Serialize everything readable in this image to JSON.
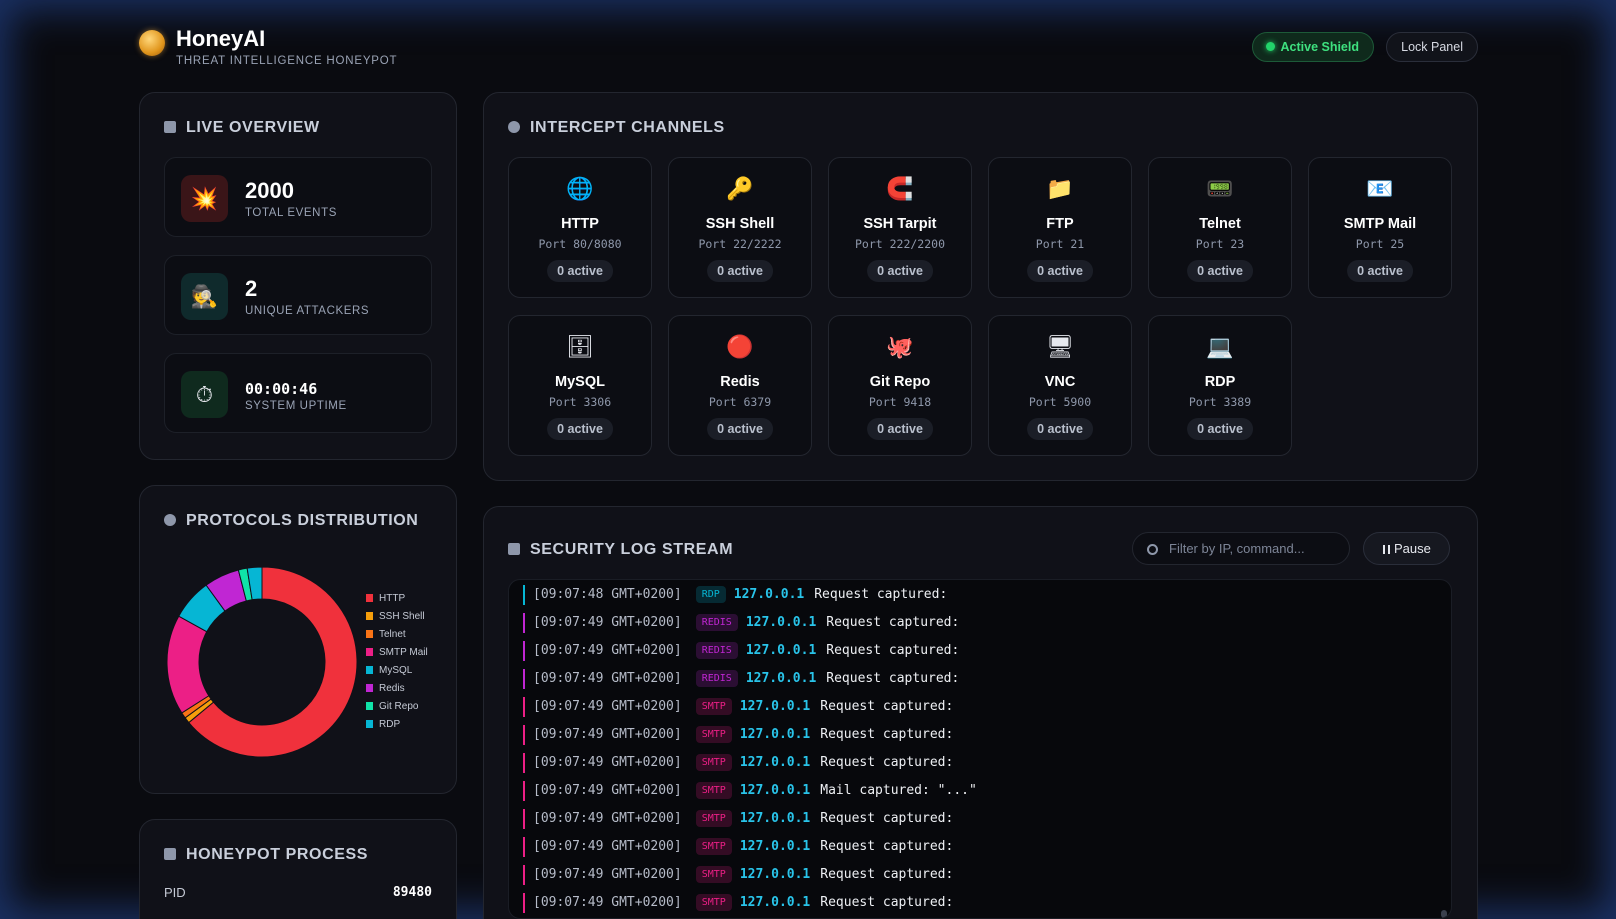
{
  "header": {
    "brand": "HoneyAI",
    "tagline": "THREAT INTELLIGENCE HONEYPOT",
    "shield_label": "Active Shield",
    "lock_label": "Lock Panel"
  },
  "overview": {
    "title": "LIVE OVERVIEW",
    "stats": [
      {
        "value": "2000",
        "label": "TOTAL EVENTS",
        "icon": "explosion-icon",
        "glyph": "💥",
        "color": "#3a1518"
      },
      {
        "value": "2",
        "label": "UNIQUE ATTACKERS",
        "icon": "spy-icon",
        "glyph": "🕵",
        "color": "#0f2a2c"
      },
      {
        "value": "00:00:46",
        "label": "SYSTEM UPTIME",
        "icon": "stopwatch-icon",
        "glyph": "⏱",
        "color": "#0f2a1e"
      }
    ]
  },
  "channels": {
    "title": "INTERCEPT CHANNELS",
    "items": [
      {
        "name": "HTTP",
        "port": "Port 80/8080",
        "active": "0 active",
        "icon": "globe-icon",
        "glyph": "🌐"
      },
      {
        "name": "SSH Shell",
        "port": "Port 22/2222",
        "active": "0 active",
        "icon": "key-icon",
        "glyph": "🔑"
      },
      {
        "name": "SSH Tarpit",
        "port": "Port 222/2200",
        "active": "0 active",
        "icon": "magnet-icon",
        "glyph": "🧲"
      },
      {
        "name": "FTP",
        "port": "Port 21",
        "active": "0 active",
        "icon": "folder-icon",
        "glyph": "📁"
      },
      {
        "name": "Telnet",
        "port": "Port 23",
        "active": "0 active",
        "icon": "terminal-icon",
        "glyph": "📟"
      },
      {
        "name": "SMTP Mail",
        "port": "Port 25",
        "active": "0 active",
        "icon": "envelope-icon",
        "glyph": "📧"
      },
      {
        "name": "MySQL",
        "port": "Port 3306",
        "active": "0 active",
        "icon": "cabinet-icon",
        "glyph": "🗄"
      },
      {
        "name": "Redis",
        "port": "Port 6379",
        "active": "0 active",
        "icon": "red-circle-icon",
        "glyph": "🔴"
      },
      {
        "name": "Git Repo",
        "port": "Port 9418",
        "active": "0 active",
        "icon": "octopus-icon",
        "glyph": "🐙"
      },
      {
        "name": "VNC",
        "port": "Port 5900",
        "active": "0 active",
        "icon": "monitor-icon",
        "glyph": "🖥"
      },
      {
        "name": "RDP",
        "port": "Port 3389",
        "active": "0 active",
        "icon": "laptop-icon",
        "glyph": "💻"
      }
    ]
  },
  "protocols": {
    "title": "PROTOCOLS DISTRIBUTION"
  },
  "chart_data": {
    "type": "pie",
    "variant": "donut",
    "categories": [
      "HTTP",
      "SSH Shell",
      "Telnet",
      "SMTP Mail",
      "MySQL",
      "Redis",
      "Git Repo",
      "RDP"
    ],
    "values": [
      64,
      1,
      1,
      17,
      7,
      6,
      1.5,
      2.5
    ],
    "colors": [
      "#f0313c",
      "#f59e0b",
      "#f97316",
      "#ec1f86",
      "#06b6d4",
      "#c026d3",
      "#10e3a8",
      "#06b6d4"
    ],
    "legend": "right"
  },
  "process": {
    "title": "HONEYPOT PROCESS",
    "rows": [
      {
        "key": "PID",
        "value": "89480"
      }
    ]
  },
  "logs": {
    "title": "SECURITY LOG STREAM",
    "search_placeholder": "Filter by IP, command...",
    "pause_label": "Pause",
    "entries": [
      {
        "time": "[09:07:48 GMT+0200]",
        "tag": "RDP",
        "ip": "127.0.0.1",
        "msg": "Request captured:",
        "color": "#06b6d4"
      },
      {
        "time": "[09:07:49 GMT+0200]",
        "tag": "REDIS",
        "ip": "127.0.0.1",
        "msg": "Request captured:",
        "color": "#c026d3"
      },
      {
        "time": "[09:07:49 GMT+0200]",
        "tag": "REDIS",
        "ip": "127.0.0.1",
        "msg": "Request captured:",
        "color": "#c026d3"
      },
      {
        "time": "[09:07:49 GMT+0200]",
        "tag": "REDIS",
        "ip": "127.0.0.1",
        "msg": "Request captured:",
        "color": "#c026d3"
      },
      {
        "time": "[09:07:49 GMT+0200]",
        "tag": "SMTP",
        "ip": "127.0.0.1",
        "msg": "Request captured:",
        "color": "#ec1f86"
      },
      {
        "time": "[09:07:49 GMT+0200]",
        "tag": "SMTP",
        "ip": "127.0.0.1",
        "msg": "Request captured:",
        "color": "#ec1f86"
      },
      {
        "time": "[09:07:49 GMT+0200]",
        "tag": "SMTP",
        "ip": "127.0.0.1",
        "msg": "Request captured:",
        "color": "#ec1f86"
      },
      {
        "time": "[09:07:49 GMT+0200]",
        "tag": "SMTP",
        "ip": "127.0.0.1",
        "msg": "Mail captured: \"...\"",
        "color": "#ec1f86"
      },
      {
        "time": "[09:07:49 GMT+0200]",
        "tag": "SMTP",
        "ip": "127.0.0.1",
        "msg": "Request captured:",
        "color": "#ec1f86"
      },
      {
        "time": "[09:07:49 GMT+0200]",
        "tag": "SMTP",
        "ip": "127.0.0.1",
        "msg": "Request captured:",
        "color": "#ec1f86"
      },
      {
        "time": "[09:07:49 GMT+0200]",
        "tag": "SMTP",
        "ip": "127.0.0.1",
        "msg": "Request captured:",
        "color": "#ec1f86"
      },
      {
        "time": "[09:07:49 GMT+0200]",
        "tag": "SMTP",
        "ip": "127.0.0.1",
        "msg": "Request captured:",
        "color": "#ec1f86"
      }
    ]
  }
}
